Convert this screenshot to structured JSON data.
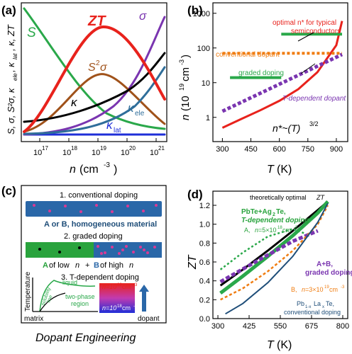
{
  "colors": {
    "red": "#e8221c",
    "green": "#2aa84a",
    "brown": "#a0521a",
    "purple": "#7a35b0",
    "teal": "#2f6e9a",
    "blue": "#1f2fd8",
    "black": "#000000",
    "orange": "#f07d12",
    "navy": "#1f4e79",
    "pink": "#d93a95",
    "panel_c_green": "#29a33d",
    "panel_c_blue": "#2a67a8"
  },
  "panels": {
    "a": {
      "label": "(a)",
      "xlabel_n": "n",
      "xlabel_unit": "(cm",
      "xlabel_exp": "-3",
      "xlabel_close": ")",
      "ylabel": "S, σ, S²σ, κ",
      "ylabel_rest": "ele",
      "ylabel_sep": ", κ",
      "ylabel_lat": "lat",
      "ylabel_end": ", κ, ZT",
      "xticks": [
        "10",
        "10",
        "10",
        "10",
        "10"
      ],
      "xtick_exps": [
        "17",
        "18",
        "19",
        "20",
        "21"
      ],
      "series_labels": {
        "ZT": "ZT",
        "S": "S",
        "sigma": "σ",
        "S2sigma": "S",
        "S2sigma_exp": "2",
        "S2sigma_end": "σ",
        "kappa": "κ",
        "kappa_ele": "κ",
        "kappa_ele_sub": "ele",
        "kappa_lat": "κ",
        "kappa_lat_sub": "lat"
      }
    },
    "b": {
      "label": "(b)",
      "xlabel": "T",
      "xlabel_unit": "(K)",
      "ylabel": "n",
      "ylabel_unit": "(10",
      "ylabel_exp": "19",
      "ylabel_unit2": "cm",
      "ylabel_exp2": "-3",
      "ylabel_close": ")",
      "xticks": [
        "300",
        "450",
        "600",
        "750",
        "900"
      ],
      "yticks": [
        "1",
        "10",
        "100",
        "1000"
      ],
      "annotations": {
        "optimal": "optimal n* for typical",
        "optimal2": "semiconductors",
        "conventional": "conventional dopant",
        "graded": "graded doping",
        "tdep": "T-dependent dopant",
        "nstar": "n*~(T)",
        "nstar_exp": "3/2"
      }
    },
    "c": {
      "label": "(c)",
      "step1": "1. conventional doping",
      "step1_caption": "A or B, homogeneous material",
      "step2": "2. graded doping",
      "step2_caption_a": "A",
      "step2_caption_mid1": " of low ",
      "step2_caption_n1": "n",
      "step2_caption_plus": "+",
      "step2_caption_b": "B",
      "step2_caption_mid2": " of high ",
      "step2_caption_n2": "n",
      "step3": "3. T-dependent doping",
      "y_axis": "Temperature",
      "x_left": "matrix",
      "x_right": "dopant",
      "liquid": "liquid",
      "two_phase": "two-phase",
      "two_phase2": "region",
      "solubility": "solubility",
      "solubility2": "line",
      "n_high": "n=10",
      "n_high_exp": "22",
      "n_high_unit": " cm",
      "n_high_unit_exp": "-3",
      "n_low": "n=10",
      "n_low_exp": "18",
      "n_low_unit": " cm",
      "n_low_unit_exp": "-3",
      "title": "Dopant Engineering"
    },
    "d": {
      "label": "(d)",
      "xlabel": "T",
      "xlabel_unit": "(K)",
      "ylabel": "ZT",
      "xticks": [
        "300",
        "425",
        "550",
        "675",
        "800"
      ],
      "yticks": [
        "0.0",
        "0.2",
        "0.4",
        "0.6",
        "0.8",
        "1.0",
        "1.2"
      ],
      "annotations": {
        "optimal": "theoretically optimal ",
        "optimal_zt": "ZT",
        "pbte_ag": "PbTe+Ag",
        "pbte_ag_sub": "2",
        "pbte_ag_end": "Te,",
        "tdep": "T-dependent doping",
        "a_label": "A, ",
        "a_n": "n",
        "a_val": "=5×10",
        "a_exp": "18",
        "a_unit": " cm",
        "a_unit_exp": "-3",
        "ab": "A+B,",
        "ab2": "graded doping",
        "b_label": "B, ",
        "b_n": "n",
        "b_val": "=3×10",
        "b_exp": "19",
        "b_unit": " cm",
        "b_unit_exp": "-3",
        "pbla": "Pb",
        "pbla_sub": "1-x",
        "pbla_mid": "La",
        "pbla_sub2": "x",
        "pbla_end": "Te,",
        "pbla2": "conventional doping"
      }
    }
  },
  "chart_data": [
    {
      "panel": "b",
      "type": "line",
      "xlim": [
        250,
        960
      ],
      "ylim_log": [
        0.2,
        2000
      ],
      "series": [
        {
          "name": "optimal n*",
          "x": [
            300,
            400,
            500,
            600,
            700,
            800,
            900,
            930
          ],
          "y": [
            0.5,
            0.9,
            1.6,
            3.0,
            6.5,
            20,
            120,
            600
          ]
        },
        {
          "name": "conventional dopant",
          "x": [
            300,
            930
          ],
          "y": [
            70,
            70
          ]
        },
        {
          "name": "graded doping low",
          "x": [
            340,
            610
          ],
          "y": [
            14,
            14
          ]
        },
        {
          "name": "graded doping high",
          "x": [
            610,
            930
          ],
          "y": [
            250,
            250
          ]
        },
        {
          "name": "T-dependent dopant",
          "x": [
            300,
            930
          ],
          "y": [
            1.5,
            65
          ]
        }
      ]
    },
    {
      "panel": "d",
      "type": "line",
      "xlim": [
        280,
        820
      ],
      "ylim": [
        0,
        1.35
      ],
      "series": [
        {
          "name": "theoretically optimal ZT",
          "x": [
            310,
            400,
            500,
            600,
            700,
            740
          ],
          "y": [
            0.35,
            0.52,
            0.72,
            0.93,
            1.15,
            1.24
          ]
        },
        {
          "name": "PbTe+Ag2Te, T-dependent doping",
          "x": [
            310,
            400,
            500,
            600,
            700,
            740
          ],
          "y": [
            0.27,
            0.45,
            0.66,
            0.88,
            1.12,
            1.24
          ]
        },
        {
          "name": "A, n=5x10^18",
          "x": [
            310,
            400,
            500,
            600,
            650
          ],
          "y": [
            0.52,
            0.7,
            0.87,
            0.95,
            0.9
          ]
        },
        {
          "name": "A+B graded",
          "x": [
            310,
            450,
            600,
            700
          ],
          "y": [
            0.39,
            0.6,
            0.82,
            0.93
          ]
        },
        {
          "name": "B, n=3x10^19",
          "x": [
            310,
            400,
            500,
            600,
            700,
            740
          ],
          "y": [
            0.2,
            0.32,
            0.5,
            0.72,
            1.0,
            1.2
          ]
        },
        {
          "name": "Pb1-xLaxTe",
          "x": [
            330,
            400,
            500,
            600,
            700,
            740
          ],
          "y": [
            0.05,
            0.16,
            0.38,
            0.66,
            1.02,
            1.22
          ]
        }
      ]
    }
  ]
}
